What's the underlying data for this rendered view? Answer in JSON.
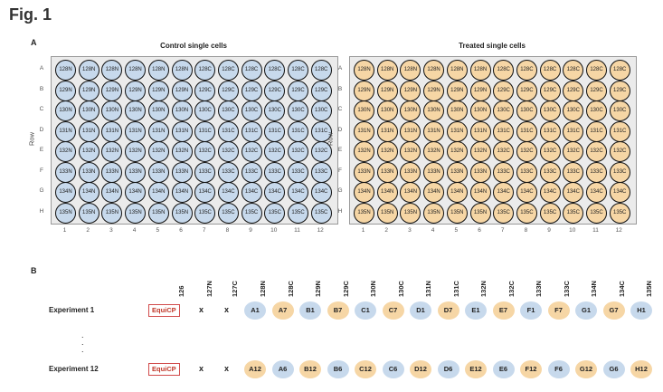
{
  "figure_title": "Fig. 1",
  "panel_a_label": "A",
  "panel_b_label": "B",
  "colors": {
    "control": "#c7d9ec",
    "treated": "#f6d6a5"
  },
  "plate_rows": [
    "A",
    "B",
    "C",
    "D",
    "E",
    "F",
    "G",
    "H"
  ],
  "plate_cols": [
    "1",
    "2",
    "3",
    "4",
    "5",
    "6",
    "7",
    "8",
    "9",
    "10",
    "11",
    "12"
  ],
  "row_axis_label": "Row",
  "plate_wells": [
    [
      "128N",
      "128N",
      "128N",
      "128N",
      "128N",
      "128N",
      "128C",
      "128C",
      "128C",
      "128C",
      "128C",
      "128C"
    ],
    [
      "129N",
      "129N",
      "129N",
      "129N",
      "129N",
      "129N",
      "129C",
      "129C",
      "129C",
      "129C",
      "129C",
      "129C"
    ],
    [
      "130N",
      "130N",
      "130N",
      "130N",
      "130N",
      "130N",
      "130C",
      "130C",
      "130C",
      "130C",
      "130C",
      "130C"
    ],
    [
      "131N",
      "131N",
      "131N",
      "131N",
      "131N",
      "131N",
      "131C",
      "131C",
      "131C",
      "131C",
      "131C",
      "131C"
    ],
    [
      "132N",
      "132N",
      "132N",
      "132N",
      "132N",
      "132N",
      "132C",
      "132C",
      "132C",
      "132C",
      "132C",
      "132C"
    ],
    [
      "133N",
      "133N",
      "133N",
      "133N",
      "133N",
      "133N",
      "133C",
      "133C",
      "133C",
      "133C",
      "133C",
      "133C"
    ],
    [
      "134N",
      "134N",
      "134N",
      "134N",
      "134N",
      "134N",
      "134C",
      "134C",
      "134C",
      "134C",
      "134C",
      "134C"
    ],
    [
      "135N",
      "135N",
      "135N",
      "135N",
      "135N",
      "135N",
      "135C",
      "135C",
      "135C",
      "135C",
      "135C",
      "135C"
    ]
  ],
  "plates": [
    {
      "title": "Control single cells",
      "color_key": "control"
    },
    {
      "title": "Treated single cells",
      "color_key": "treated"
    }
  ],
  "channels": [
    "126",
    "127N",
    "127C",
    "128N",
    "128C",
    "129N",
    "129C",
    "130N",
    "130C",
    "131N",
    "131C",
    "132N",
    "132C",
    "133N",
    "133C",
    "134N",
    "134C",
    "135N"
  ],
  "experiments": [
    {
      "label": "Experiment 1",
      "ref": "EquiCP",
      "empty": [
        "x",
        "x"
      ],
      "cells": [
        {
          "t": "A1",
          "c": "control"
        },
        {
          "t": "A7",
          "c": "treated"
        },
        {
          "t": "B1",
          "c": "control"
        },
        {
          "t": "B7",
          "c": "treated"
        },
        {
          "t": "C1",
          "c": "control"
        },
        {
          "t": "C7",
          "c": "treated"
        },
        {
          "t": "D1",
          "c": "control"
        },
        {
          "t": "D7",
          "c": "treated"
        },
        {
          "t": "E1",
          "c": "control"
        },
        {
          "t": "E7",
          "c": "treated"
        },
        {
          "t": "F1",
          "c": "control"
        },
        {
          "t": "F7",
          "c": "treated"
        },
        {
          "t": "G1",
          "c": "control"
        },
        {
          "t": "G7",
          "c": "treated"
        },
        {
          "t": "H1",
          "c": "control"
        }
      ]
    },
    {
      "label": "Experiment 12",
      "ref": "EquiCP",
      "empty": [
        "x",
        "x"
      ],
      "cells": [
        {
          "t": "A12",
          "c": "treated"
        },
        {
          "t": "A6",
          "c": "control"
        },
        {
          "t": "B12",
          "c": "treated"
        },
        {
          "t": "B6",
          "c": "control"
        },
        {
          "t": "C12",
          "c": "treated"
        },
        {
          "t": "C6",
          "c": "control"
        },
        {
          "t": "D12",
          "c": "treated"
        },
        {
          "t": "D6",
          "c": "control"
        },
        {
          "t": "E12",
          "c": "treated"
        },
        {
          "t": "E6",
          "c": "control"
        },
        {
          "t": "F12",
          "c": "treated"
        },
        {
          "t": "F6",
          "c": "control"
        },
        {
          "t": "G12",
          "c": "treated"
        },
        {
          "t": "G6",
          "c": "control"
        },
        {
          "t": "H12",
          "c": "treated"
        }
      ]
    }
  ],
  "ellipsis": ".\n.\n."
}
